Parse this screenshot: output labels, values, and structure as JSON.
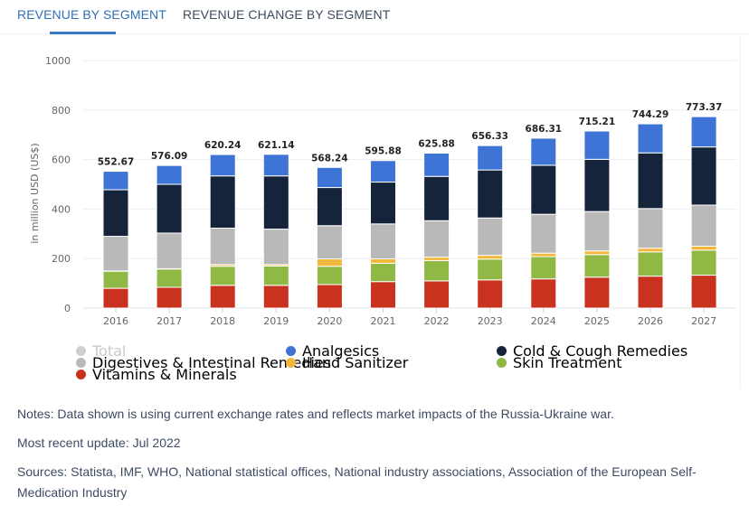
{
  "tabs": [
    {
      "label": "REVENUE BY SEGMENT",
      "active": true
    },
    {
      "label": "REVENUE CHANGE BY SEGMENT",
      "active": false
    }
  ],
  "colors": {
    "accent": "#2f6fb8",
    "total": "#cfcfcf",
    "analgesics": "#3d74d6",
    "cold_cough": "#16243b",
    "digestives": "#b9b9b9",
    "hand_sanitizer": "#f4b73d",
    "skin_treatment": "#8fb844",
    "vitamins": "#c9321f"
  },
  "chart_data": {
    "type": "bar",
    "stacked": true,
    "title": "",
    "xlabel": "",
    "ylabel": "in million USD (US$)",
    "ylim": [
      0,
      1000
    ],
    "yticks": [
      0,
      200,
      400,
      600,
      800,
      1000
    ],
    "grid": true,
    "legend_position": "bottom",
    "categories": [
      "2016",
      "2017",
      "2018",
      "2019",
      "2020",
      "2021",
      "2022",
      "2023",
      "2024",
      "2025",
      "2026",
      "2027"
    ],
    "totals": [
      "552.67",
      "576.09",
      "620.24",
      "621.14",
      "568.24",
      "595.88",
      "625.88",
      "656.33",
      "686.31",
      "715.21",
      "744.29",
      "773.37"
    ],
    "series": [
      {
        "name": "Vitamins & Minerals",
        "key": "vitamins",
        "values": [
          80,
          84,
          92,
          92,
          95,
          107,
          110,
          114,
          118,
          125,
          129,
          133
        ]
      },
      {
        "name": "Skin Treatment",
        "key": "skin_treatment",
        "values": [
          69,
          74,
          77,
          78,
          74,
          74,
          82,
          84,
          90,
          91,
          98,
          101
        ]
      },
      {
        "name": "Hand Sanitizer",
        "key": "hand_sanitizer",
        "values": [
          1,
          1,
          7,
          6,
          30,
          18,
          14,
          15,
          14,
          15,
          15,
          16
        ]
      },
      {
        "name": "Digestives & Intestinal Remedies",
        "key": "digestives",
        "values": [
          140,
          144,
          147,
          143,
          134,
          141,
          147,
          151,
          157,
          159,
          160,
          166
        ]
      },
      {
        "name": "Cold & Cough Remedies",
        "key": "cold_cough",
        "values": [
          188,
          197,
          211,
          215,
          154,
          169,
          179,
          194,
          198,
          211,
          225,
          235
        ]
      },
      {
        "name": "Analgesics",
        "key": "analgesics",
        "values": [
          74.67,
          76.09,
          86.24,
          87.14,
          81.24,
          86.88,
          93.88,
          98.33,
          109.31,
          114.21,
          117.29,
          122.37
        ]
      }
    ],
    "legend": [
      {
        "label": "Total",
        "key": "total",
        "muted": true
      },
      {
        "label": "Analgesics",
        "key": "analgesics"
      },
      {
        "label": "Cold & Cough Remedies",
        "key": "cold_cough"
      },
      {
        "label": "Digestives & Intestinal Remedies",
        "key": "digestives"
      },
      {
        "label": "Hand Sanitizer",
        "key": "hand_sanitizer"
      },
      {
        "label": "Skin Treatment",
        "key": "skin_treatment"
      },
      {
        "label": "Vitamins & Minerals",
        "key": "vitamins"
      }
    ]
  },
  "notes": {
    "note": "Notes: Data shown is using current exchange rates and reflects market impacts of the Russia-Ukraine war.",
    "update": "Most recent update: Jul 2022",
    "sources": "Sources: Statista, IMF, WHO, National statistical offices, National industry associations, Association of the European Self-Medication Industry"
  }
}
